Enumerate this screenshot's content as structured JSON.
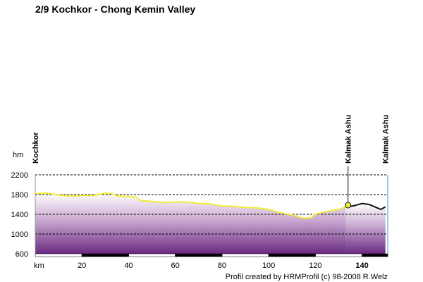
{
  "chart_data": {
    "type": "line",
    "title": "2/9 Kochkor - Chong Kemin Valley",
    "x_label": "km",
    "y_label": "hm",
    "x": [
      0,
      5,
      10,
      15,
      20,
      25,
      30,
      33,
      35,
      40,
      43,
      45,
      50,
      55,
      60,
      65,
      70,
      75,
      80,
      85,
      90,
      95,
      100,
      105,
      110,
      112,
      115,
      118,
      120,
      125,
      130,
      133,
      135,
      137,
      140,
      143,
      146,
      148,
      150
    ],
    "series": [
      {
        "color": "#f2ec3a",
        "values": [
          1820,
          1830,
          1790,
          1770,
          1780,
          1780,
          1830,
          1820,
          1770,
          1760,
          1750,
          1680,
          1660,
          1640,
          1650,
          1650,
          1620,
          1610,
          1570,
          1560,
          1540,
          1530,
          1500,
          1430,
          1390,
          1360,
          1320,
          1330,
          1400,
          1460,
          1500,
          1550,
          null,
          null,
          null,
          null,
          null,
          null,
          null
        ]
      },
      {
        "color": "#111111",
        "values": [
          null,
          null,
          null,
          null,
          null,
          null,
          null,
          null,
          null,
          null,
          null,
          null,
          null,
          null,
          null,
          null,
          null,
          null,
          null,
          null,
          null,
          null,
          null,
          null,
          null,
          null,
          null,
          null,
          null,
          null,
          null,
          1550,
          1560,
          1580,
          1620,
          1600,
          1540,
          1500,
          1550
        ]
      }
    ],
    "xlim": [
      0,
      151
    ],
    "ylim": [
      600,
      2200
    ],
    "xticks": [
      20,
      40,
      60,
      80,
      100,
      120,
      140
    ],
    "yticks": [
      600,
      1000,
      1400,
      1800,
      2200
    ],
    "grid": true,
    "annotations": [
      {
        "text": "Kochkor",
        "x": 0
      },
      {
        "text": "Kalmak Ashu",
        "x": 134
      },
      {
        "text": "Kalmak Ashu",
        "x": 150
      }
    ],
    "footer": "Profil created by HRMProfil (c) 98-2008 R.Welz"
  }
}
